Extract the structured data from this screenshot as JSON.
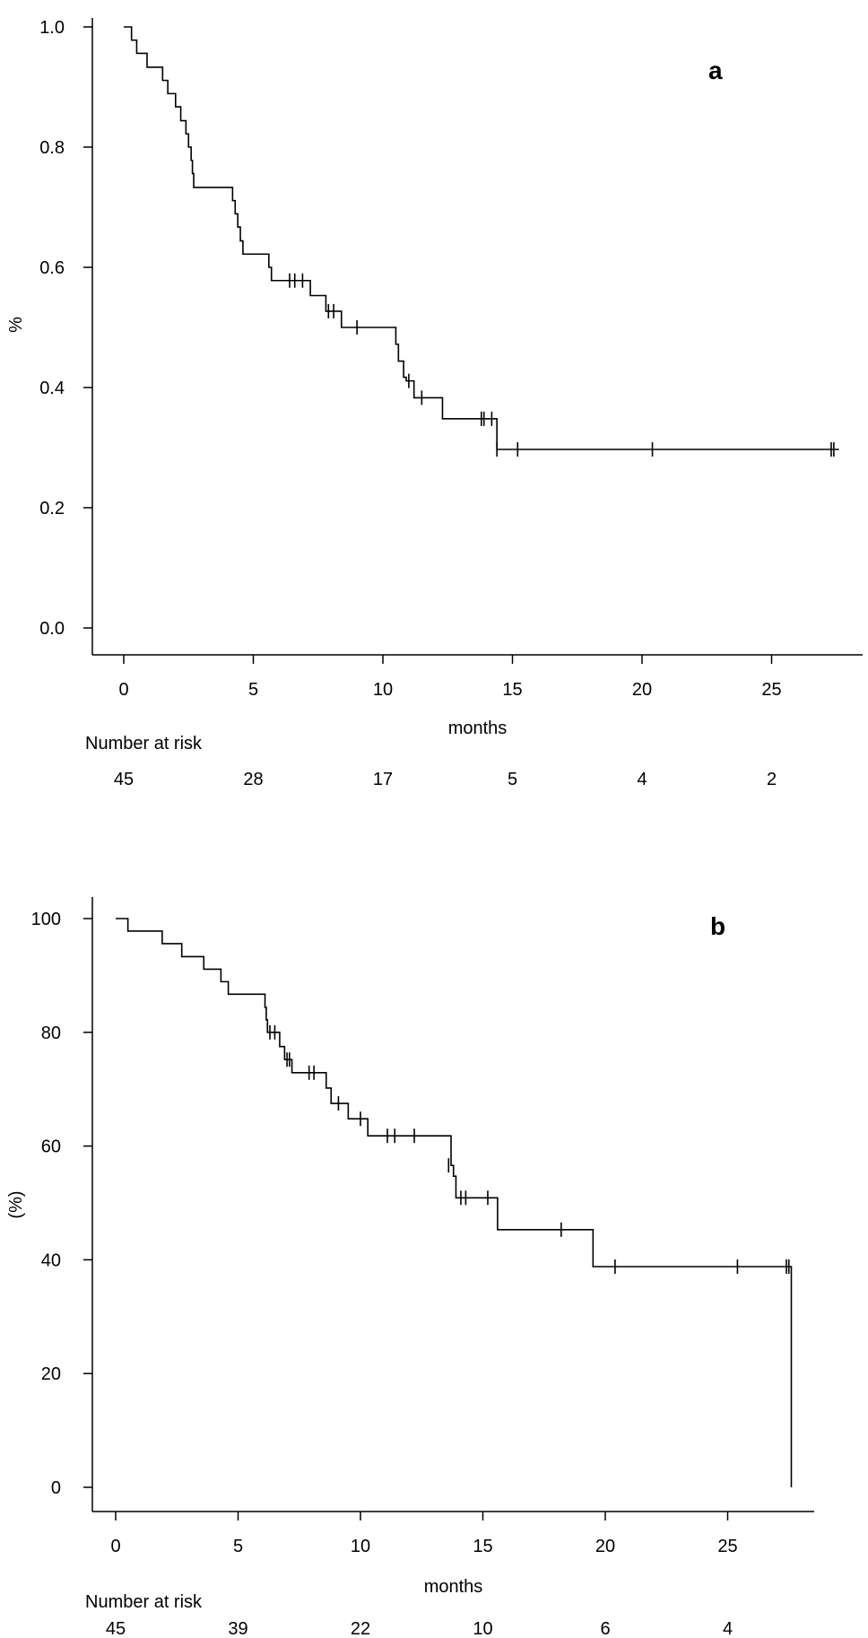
{
  "chart_data": [
    {
      "type": "line",
      "panel_label": "a",
      "xlabel": "months",
      "ylabel": "%",
      "xlim": [
        0,
        28
      ],
      "ylim": [
        0,
        1
      ],
      "x_ticks": [
        0,
        5,
        10,
        15,
        20,
        25
      ],
      "x_tick_labels": [
        "0",
        "5",
        "10",
        "15",
        "20",
        "25"
      ],
      "y_ticks": [
        0,
        0.2,
        0.4,
        0.6,
        0.8,
        1.0
      ],
      "y_tick_labels": [
        "0.0",
        "0.2",
        "0.4",
        "0.6",
        "0.8",
        "1.0"
      ],
      "series": [
        {
          "steps": [
            [
              0,
              1.0
            ],
            [
              0.3,
              0.978
            ],
            [
              0.5,
              0.956
            ],
            [
              0.9,
              0.933
            ],
            [
              1.5,
              0.911
            ],
            [
              1.7,
              0.889
            ],
            [
              2.0,
              0.867
            ],
            [
              2.2,
              0.844
            ],
            [
              2.4,
              0.822
            ],
            [
              2.5,
              0.8
            ],
            [
              2.6,
              0.778
            ],
            [
              2.65,
              0.756
            ],
            [
              2.7,
              0.733
            ],
            [
              4.2,
              0.711
            ],
            [
              4.3,
              0.689
            ],
            [
              4.4,
              0.667
            ],
            [
              4.5,
              0.644
            ],
            [
              4.6,
              0.622
            ],
            [
              5.6,
              0.6
            ],
            [
              5.7,
              0.578
            ],
            [
              7.2,
              0.553
            ],
            [
              7.8,
              0.527
            ],
            [
              8.4,
              0.5
            ],
            [
              10.5,
              0.472
            ],
            [
              10.6,
              0.444
            ],
            [
              10.8,
              0.417
            ],
            [
              10.9,
              0.411
            ],
            [
              11.2,
              0.383
            ],
            [
              12.3,
              0.348
            ],
            [
              14.4,
              0.297
            ]
          ],
          "end_x": 27.6,
          "censored": [
            [
              6.4,
              0.578
            ],
            [
              6.6,
              0.578
            ],
            [
              6.9,
              0.578
            ],
            [
              7.9,
              0.527
            ],
            [
              8.1,
              0.527
            ],
            [
              9.0,
              0.5
            ],
            [
              11.0,
              0.411
            ],
            [
              11.5,
              0.383
            ],
            [
              13.8,
              0.348
            ],
            [
              13.9,
              0.348
            ],
            [
              14.2,
              0.348
            ],
            [
              14.4,
              0.297
            ],
            [
              15.2,
              0.297
            ],
            [
              20.4,
              0.297
            ],
            [
              27.3,
              0.297
            ],
            [
              27.4,
              0.297
            ]
          ]
        }
      ],
      "risk_table": {
        "label": "Number at risk",
        "x": [
          0,
          5,
          10,
          15,
          20,
          25
        ],
        "values": [
          "45",
          "28",
          "17",
          "5",
          "4",
          "2"
        ]
      }
    },
    {
      "type": "line",
      "panel_label": "b",
      "xlabel": "months",
      "ylabel": "(%)",
      "xlim": [
        0,
        28.5
      ],
      "ylim": [
        0,
        100
      ],
      "x_ticks": [
        0,
        5,
        10,
        15,
        20,
        25
      ],
      "x_tick_labels": [
        "0",
        "5",
        "10",
        "15",
        "20",
        "25"
      ],
      "y_ticks": [
        0,
        20,
        40,
        60,
        80,
        100
      ],
      "y_tick_labels": [
        "0",
        "20",
        "40",
        "60",
        "80",
        "100"
      ],
      "series": [
        {
          "steps": [
            [
              0,
              100
            ],
            [
              0.5,
              97.8
            ],
            [
              1.9,
              95.6
            ],
            [
              2.7,
              93.3
            ],
            [
              3.6,
              91.1
            ],
            [
              4.3,
              88.9
            ],
            [
              4.6,
              86.7
            ],
            [
              6.1,
              84.4
            ],
            [
              6.15,
              82.2
            ],
            [
              6.2,
              80.0
            ],
            [
              6.7,
              77.5
            ],
            [
              6.9,
              75.2
            ],
            [
              7.2,
              72.9
            ],
            [
              8.6,
              70.2
            ],
            [
              8.8,
              67.5
            ],
            [
              9.5,
              64.8
            ],
            [
              10.3,
              61.8
            ],
            [
              13.7,
              56.6
            ],
            [
              13.8,
              54.7
            ],
            [
              13.9,
              50.9
            ],
            [
              15.6,
              45.3
            ],
            [
              19.5,
              38.8
            ],
            [
              27.6,
              0
            ]
          ],
          "end_x": 27.6,
          "censored": [
            [
              6.3,
              80.0
            ],
            [
              6.5,
              80.0
            ],
            [
              7.0,
              75.2
            ],
            [
              7.1,
              75.2
            ],
            [
              7.9,
              72.9
            ],
            [
              8.1,
              72.9
            ],
            [
              9.1,
              67.5
            ],
            [
              10.0,
              64.8
            ],
            [
              11.1,
              61.8
            ],
            [
              11.4,
              61.8
            ],
            [
              12.2,
              61.8
            ],
            [
              13.6,
              56.6
            ],
            [
              14.1,
              50.9
            ],
            [
              14.3,
              50.9
            ],
            [
              15.2,
              50.9
            ],
            [
              18.2,
              45.3
            ],
            [
              20.4,
              38.8
            ],
            [
              25.4,
              38.8
            ],
            [
              27.4,
              38.8
            ],
            [
              27.5,
              38.8
            ]
          ]
        }
      ],
      "risk_table": {
        "label": "Number at risk",
        "x": [
          0,
          5,
          10,
          15,
          20,
          25
        ],
        "values": [
          "45",
          "39",
          "22",
          "10",
          "6",
          "4"
        ]
      }
    }
  ]
}
